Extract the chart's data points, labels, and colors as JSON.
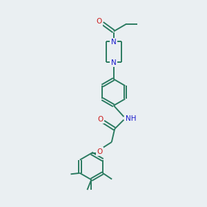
{
  "bg_color": "#eaeff2",
  "bond_color": "#2a7a60",
  "nitrogen_color": "#1a1acc",
  "oxygen_color": "#cc1a1a",
  "line_width": 1.4,
  "font_size": 7.5,
  "fig_width": 3.0,
  "fig_height": 3.0,
  "dpi": 100,
  "xlim": [
    0,
    10
  ],
  "ylim": [
    0,
    10
  ]
}
